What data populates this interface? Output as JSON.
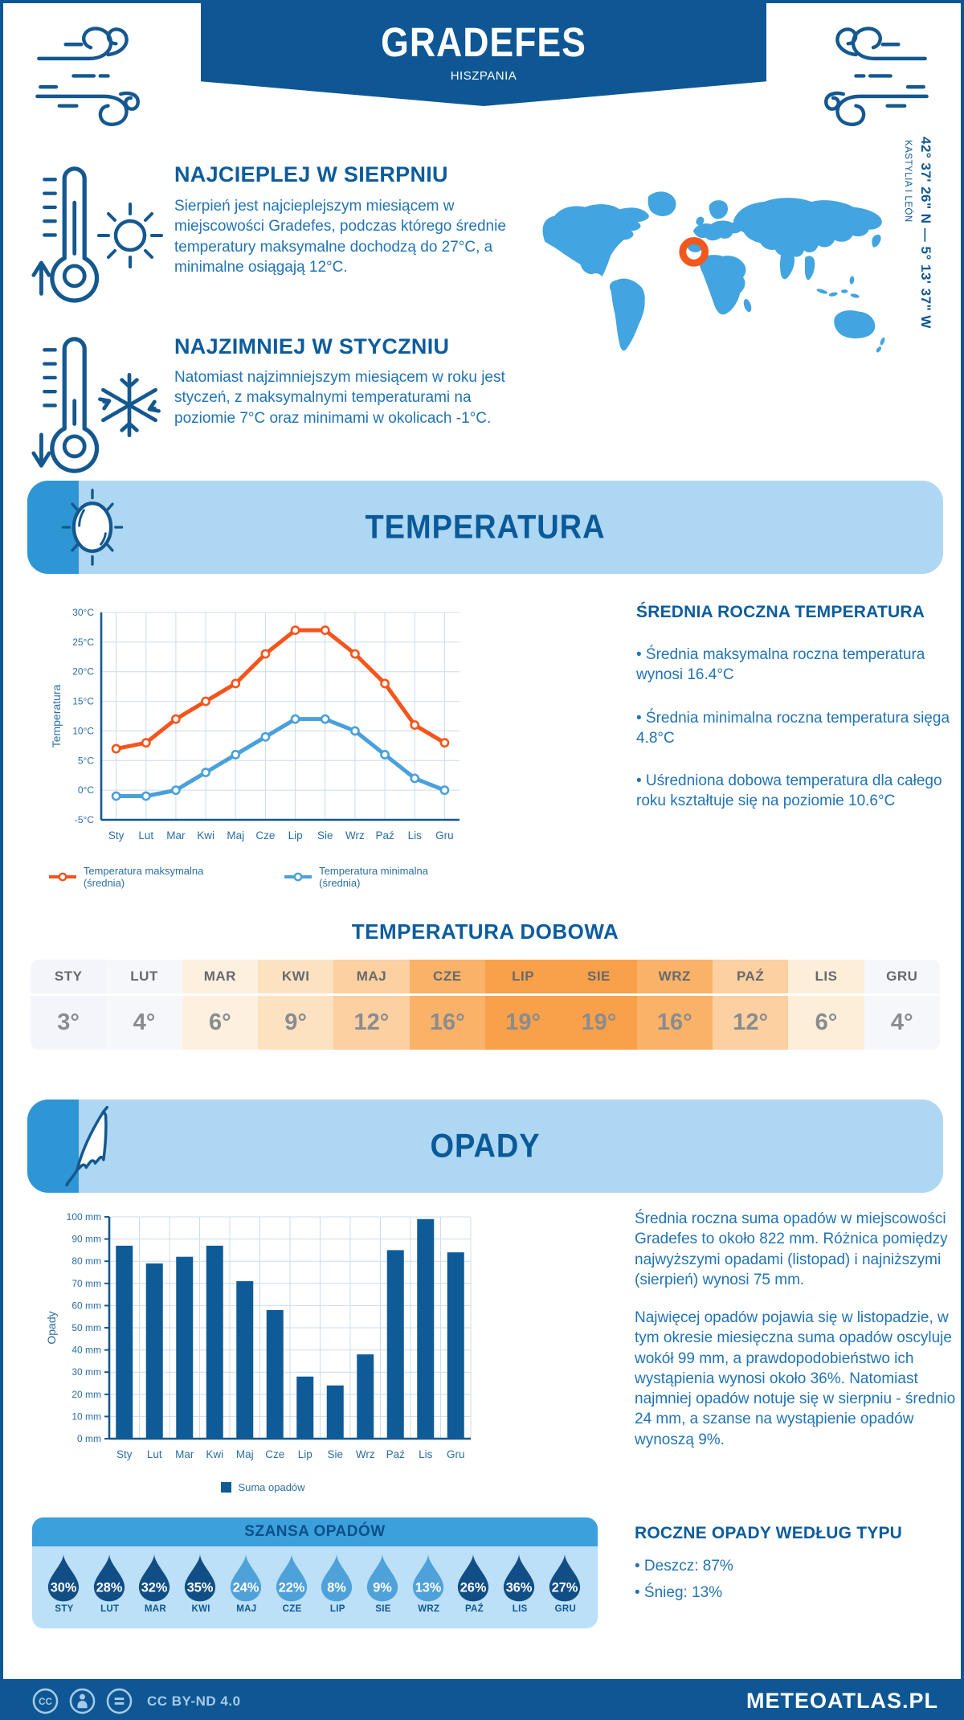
{
  "header": {
    "title": "GRADEFES",
    "subtitle": "HISZPANIA"
  },
  "location": {
    "coordinates": "42° 37' 26\" N — 5° 13' 37\" W",
    "region": "KASTYLIA I LEÓN"
  },
  "highlights": {
    "warm": {
      "heading": "NAJCIEPLEJ W SIERPNIU",
      "text": "Sierpień jest najcieplejszym miesiącem w miejscowości Gradefes, podczas którego średnie temperatury maksymalne dochodzą do 27°C, a minimalne osiągają 12°C."
    },
    "cold": {
      "heading": "NAJZIMNIEJ W STYCZNIU",
      "text": "Natomiast najzimniejszym miesiącem w roku jest styczeń, z maksymalnymi temperaturami na poziomie 7°C oraz minimami w okolicach -1°C."
    }
  },
  "temperature": {
    "banner": "TEMPERATURA",
    "annual_heading": "ŚREDNIA ROCZNA TEMPERATURA",
    "annual_bullets": [
      "• Średnia maksymalna roczna temperatura wynosi 16.4°C",
      "• Średnia minimalna roczna temperatura sięga 4.8°C",
      "• Uśredniona dobowa temperatura dla całego roku kształtuje się na poziomie 10.6°C"
    ],
    "daily_heading": "TEMPERATURA DOBOWA",
    "daily": {
      "months": [
        "STY",
        "LUT",
        "MAR",
        "KWI",
        "MAJ",
        "CZE",
        "LIP",
        "SIE",
        "WRZ",
        "PAŹ",
        "LIS",
        "GRU"
      ],
      "values": [
        "3°",
        "4°",
        "6°",
        "9°",
        "12°",
        "16°",
        "19°",
        "19°",
        "16°",
        "12°",
        "6°",
        "4°"
      ],
      "cell_colors": [
        "#F3F5FA",
        "#F5F7FB",
        "#FDF0DE",
        "#FDE2C1",
        "#FCD0A0",
        "#FAB269",
        "#F9A14A",
        "#F9A14A",
        "#FAB269",
        "#FCD0A0",
        "#FDEEDA",
        "#F5F7FB"
      ]
    }
  },
  "precipitation": {
    "banner": "OPADY",
    "paragraphs": [
      "Średnia roczna suma opadów w miejscowości Gradefes to około 822 mm. Różnica pomiędzy najwyższymi opadami (listopad) i najniższymi (sierpień) wynosi 75 mm.",
      "Najwięcej opadów pojawia się w listopadzie, w tym okresie miesięczna suma opadów oscyluje wokół 99 mm, a prawdopodobieństwo ich wystąpienia wynosi około 36%. Natomiast najmniej opadów notuje się w sierpniu - średnio 24 mm, a szanse na wystąpienie opadów wynoszą 9%."
    ],
    "chance": {
      "title": "SZANSA OPADÓW",
      "months": [
        "STY",
        "LUT",
        "MAR",
        "KWI",
        "MAJ",
        "CZE",
        "LIP",
        "SIE",
        "WRZ",
        "PAŹ",
        "LIS",
        "GRU"
      ],
      "values": [
        "30%",
        "28%",
        "32%",
        "35%",
        "24%",
        "22%",
        "8%",
        "9%",
        "13%",
        "26%",
        "36%",
        "27%"
      ],
      "dark": [
        true,
        true,
        true,
        true,
        false,
        false,
        false,
        false,
        false,
        true,
        true,
        true
      ]
    },
    "types_heading": "ROCZNE OPADY WEDŁUG TYPU",
    "types_bullets": [
      "• Deszcz: 87%",
      "• Śnieg: 13%"
    ]
  },
  "chart_data": [
    {
      "type": "line",
      "title": "",
      "categories": [
        "Sty",
        "Lut",
        "Mar",
        "Kwi",
        "Maj",
        "Cze",
        "Lip",
        "Sie",
        "Wrz",
        "Paź",
        "Lis",
        "Gru"
      ],
      "series": [
        {
          "name": "Temperatura maksymalna (średnia)",
          "color": "#F4551C",
          "values": [
            7,
            8,
            12,
            15,
            18,
            23,
            27,
            27,
            23,
            18,
            11,
            8
          ]
        },
        {
          "name": "Temperatura minimalna (średnia)",
          "color": "#4AA0DC",
          "values": [
            -1,
            -1,
            0,
            3,
            6,
            9,
            12,
            12,
            10,
            6,
            2,
            0
          ]
        }
      ],
      "xlabel": "",
      "ylabel": "Temperatura",
      "yunit": "°C",
      "ylim": [
        -5,
        30
      ],
      "ytick_step": 5,
      "grid": true,
      "legend_position": "bottom"
    },
    {
      "type": "bar",
      "title": "",
      "categories": [
        "Sty",
        "Lut",
        "Mar",
        "Kwi",
        "Maj",
        "Cze",
        "Lip",
        "Sie",
        "Wrz",
        "Paź",
        "Lis",
        "Gru"
      ],
      "values": [
        87,
        79,
        82,
        87,
        71,
        58,
        28,
        24,
        38,
        85,
        99,
        84
      ],
      "xlabel": "",
      "ylabel": "Opady",
      "yunit": " mm",
      "ylim": [
        0,
        100
      ],
      "ytick_step": 10,
      "grid": true,
      "bar_color": "#0F5B97",
      "legend": "Suma opadów"
    }
  ],
  "footer": {
    "license": "CC BY-ND 4.0",
    "brand": "METEOATLAS.PL",
    "cc_glyph": "CC"
  },
  "colors": {
    "navy": "#0E5794",
    "icon_stroke": "#14588F",
    "heading": "#0C5C9C",
    "body_text": "#2173B4",
    "banner_bg": "#AED7F4",
    "banner_accent": "#2E96D5",
    "banner_title": "#0A5A99",
    "grid": "#CBDCEC",
    "axis": "#14588F",
    "tick_text": "#2B6EA3",
    "panel_bg": "#BCE0F8",
    "panel_header": "#3BA0DB",
    "droplet_dark": "#114E85",
    "droplet_light": "#4FA1D9",
    "droplet_month": "#0E5794",
    "map_blue": "#42A4E0",
    "marker_orange": "#F2571E",
    "footer_muted": "#A5CBE9"
  }
}
